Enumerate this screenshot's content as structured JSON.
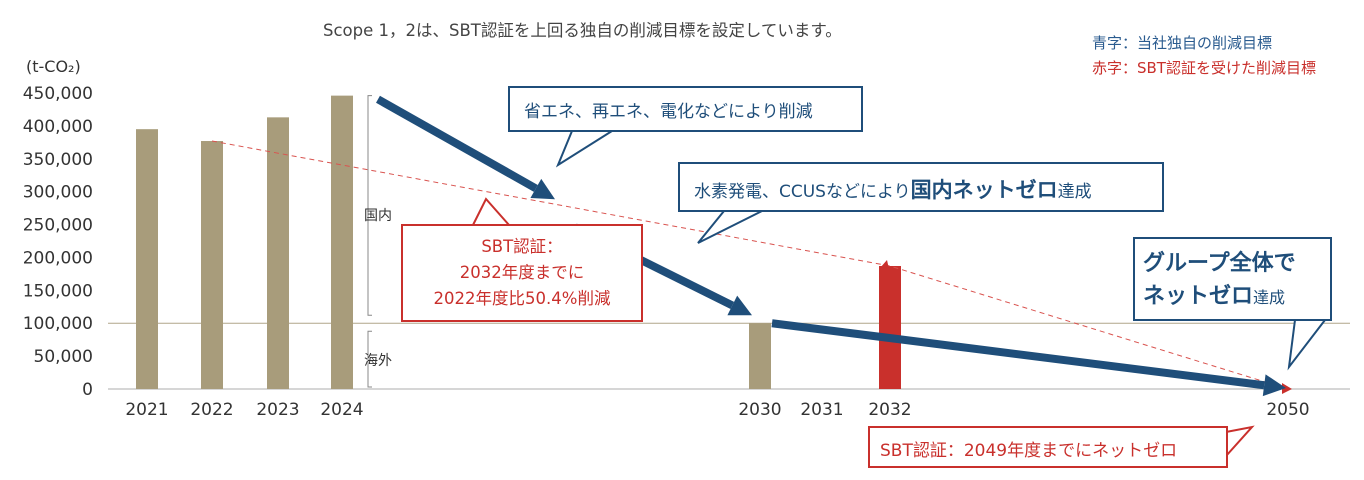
{
  "title": "Scope 1，2は、SBT認証を上回る独自の削減目標を設定しています。",
  "unit_label": "(t-CO₂)",
  "legend": {
    "blue": "青字：当社独自の削減目標",
    "red": "赤字：SBT認証を受けた削減目標"
  },
  "segments": {
    "domestic": "国内",
    "overseas": "海外"
  },
  "callouts": {
    "c1": "省エネ、再エネ、電化などにより削減",
    "c2_pre": "水素発電、CCUSなどにより",
    "c2_bold": "国内ネットゼロ",
    "c2_post": "達成",
    "c3_line1": "SBT認証：",
    "c3_line2": "2032年度までに",
    "c3_line3": "2022年度比50.4%削減",
    "c4_line1": "グループ全体で",
    "c4_bold": "ネットゼロ",
    "c4_post": "達成",
    "c5": "SBT認証：2049年度までにネットゼロ"
  },
  "colors": {
    "actual_bar": "#a89c7b",
    "sbt_bar": "#c9302c",
    "own_target": "#1f4e7a",
    "sbt_line": "#d9534f"
  },
  "chart_data": {
    "type": "bar",
    "ylabel": "(t-CO₂)",
    "ylim": [
      0,
      450000
    ],
    "yticks": [
      "450,000",
      "400,000",
      "350,000",
      "300,000",
      "250,000",
      "200,000",
      "150,000",
      "100,000",
      "50,000",
      "0"
    ],
    "ytick_values": [
      450000,
      400000,
      350000,
      300000,
      250000,
      200000,
      150000,
      100000,
      50000,
      0
    ],
    "categories": [
      "2021",
      "2022",
      "2023",
      "2024",
      "2030",
      "2031",
      "2032",
      "2050"
    ],
    "series": [
      {
        "values": [
          395000,
          377000,
          413000,
          446000,
          100000,
          null,
          null,
          null
        ]
      },
      {
        "values": [
          null,
          null,
          null,
          null,
          null,
          null,
          187000,
          null
        ]
      }
    ],
    "overseas_level": 100000,
    "own_target_path": [
      [
        "2024",
        445000
      ],
      [
        "2030",
        100000
      ],
      [
        "2050",
        0
      ]
    ],
    "sbt_target_path": [
      [
        "2022",
        377000
      ],
      [
        "2032",
        187000
      ],
      [
        "2050",
        0
      ]
    ]
  }
}
